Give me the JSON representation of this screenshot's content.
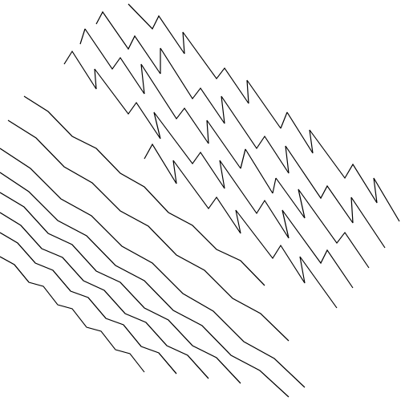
{
  "chart_data": {
    "type": "line",
    "color": "#000000",
    "grid": false,
    "tick_labels": false,
    "xlim": [
      0,
      500
    ],
    "ylim": [
      500,
      0
    ],
    "series": [
      {
        "x": [
          30,
          60,
          90,
          120,
          150,
          180,
          210,
          240,
          270,
          300,
          330
        ],
        "values": [
          120,
          139,
          170,
          185,
          216,
          233,
          265,
          281,
          311,
          325,
          356
        ]
      },
      {
        "x": [
          10,
          45,
          80,
          115,
          150,
          185,
          220,
          255,
          290,
          325,
          360
        ],
        "values": [
          150,
          172,
          208,
          228,
          263,
          282,
          318,
          337,
          372,
          391,
          425
        ]
      },
      {
        "x": [
          0,
          38,
          76,
          114,
          152,
          190,
          228,
          266,
          304,
          342,
          380
        ],
        "values": [
          185,
          210,
          248,
          269,
          307,
          328,
          366,
          388,
          426,
          447,
          483
        ]
      },
      {
        "x": [
          0,
          36,
          72,
          108,
          144,
          180,
          216,
          252,
          288,
          324,
          360
        ],
        "values": [
          215,
          239,
          275,
          294,
          331,
          350,
          387,
          406,
          443,
          462,
          495
        ]
      },
      {
        "x": [
          0,
          30,
          60,
          90,
          120,
          150,
          180,
          210,
          240,
          270,
          300
        ],
        "values": [
          240,
          258,
          291,
          305,
          338,
          352,
          384,
          399,
          431,
          446,
          478
        ]
      },
      {
        "x": [
          0,
          26,
          52,
          78,
          104,
          130,
          156,
          182,
          208,
          234,
          260
        ],
        "values": [
          265,
          281,
          310,
          321,
          350,
          362,
          391,
          402,
          431,
          443,
          472
        ]
      },
      {
        "x": [
          0,
          22,
          44,
          66,
          88,
          110,
          132,
          154,
          176,
          198,
          220
        ],
        "values": [
          290,
          303,
          328,
          337,
          363,
          371,
          397,
          405,
          432,
          440,
          466
        ]
      },
      {
        "x": [
          0,
          18,
          36,
          54,
          72,
          90,
          108,
          126,
          144,
          162,
          180
        ],
        "values": [
          320,
          330,
          352,
          357,
          380,
          385,
          408,
          413,
          436,
          441,
          464
        ]
      },
      {
        "x": [
          160,
          190,
          198,
          230,
          228,
          270,
          280,
          310,
          308,
          350,
          358,
          390,
          386,
          430,
          440,
          470,
          466,
          498
        ],
        "values": [
          5,
          36,
          20,
          67,
          40,
          98,
          85,
          129,
          100,
          160,
          140,
          191,
          162,
          222,
          205,
          253,
          222,
          276
        ]
      },
      {
        "x": [
          120,
          128,
          160,
          168,
          200,
          200,
          240,
          250,
          280,
          276,
          320,
          330,
          360,
          356,
          400,
          408,
          440,
          438,
          480
        ],
        "values": [
          30,
          15,
          61,
          45,
          92,
          60,
          123,
          110,
          154,
          120,
          185,
          170,
          216,
          182,
          247,
          232,
          278,
          246,
          309
        ]
      },
      {
        "x": [
          100,
          106,
          140,
          150,
          180,
          176,
          220,
          230,
          260,
          258,
          300,
          306,
          340,
          344,
          380,
          372,
          420,
          430,
          460
        ],
        "values": [
          55,
          36,
          86,
          72,
          117,
          80,
          148,
          135,
          179,
          150,
          210,
          186,
          241,
          222,
          272,
          236,
          303,
          290,
          334
        ]
      },
      {
        "x": [
          80,
          90,
          120,
          118,
          160,
          170,
          200,
          192,
          240,
          250,
          280,
          274,
          320,
          330,
          360,
          352,
          400,
          408,
          440
        ],
        "values": [
          80,
          64,
          111,
          86,
          142,
          128,
          173,
          140,
          204,
          190,
          235,
          200,
          266,
          250,
          297,
          262,
          328,
          312,
          359
        ]
      },
      {
        "x": [
          180,
          190,
          220,
          216,
          260,
          270,
          300,
          294,
          340,
          350,
          380,
          374,
          420
        ],
        "values": [
          198,
          180,
          229,
          200,
          260,
          246,
          291,
          262,
          322,
          306,
          353,
          320,
          384
        ]
      }
    ]
  }
}
